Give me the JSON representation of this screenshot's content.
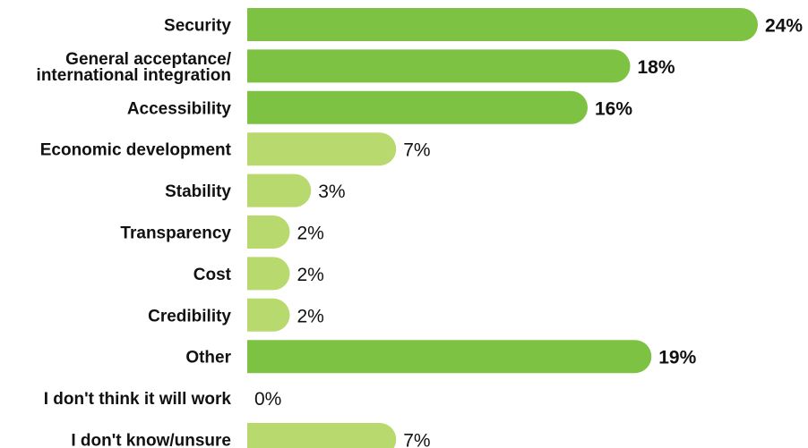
{
  "chart_data": {
    "type": "bar",
    "orientation": "horizontal",
    "title": "",
    "xlabel": "",
    "ylabel": "",
    "xlim": [
      0,
      24
    ],
    "grid": false,
    "legend": "none",
    "value_suffix": "%",
    "categories": [
      [
        "Security"
      ],
      [
        "General acceptance/",
        "international integration"
      ],
      [
        "Accessibility"
      ],
      [
        "Economic development"
      ],
      [
        "Stability"
      ],
      [
        "Transparency"
      ],
      [
        "Cost"
      ],
      [
        "Credibility"
      ],
      [
        "Other"
      ],
      [
        "I don't think it will work"
      ],
      [
        "I don't know/unsure"
      ]
    ],
    "values": [
      24,
      18,
      16,
      7,
      3,
      2,
      2,
      2,
      19,
      0,
      7
    ],
    "highlighted": [
      true,
      true,
      true,
      false,
      false,
      false,
      false,
      false,
      true,
      false,
      false
    ],
    "colors": {
      "highlight": "#7dc242",
      "normal": "#b8d96e",
      "text": "#111111"
    }
  }
}
